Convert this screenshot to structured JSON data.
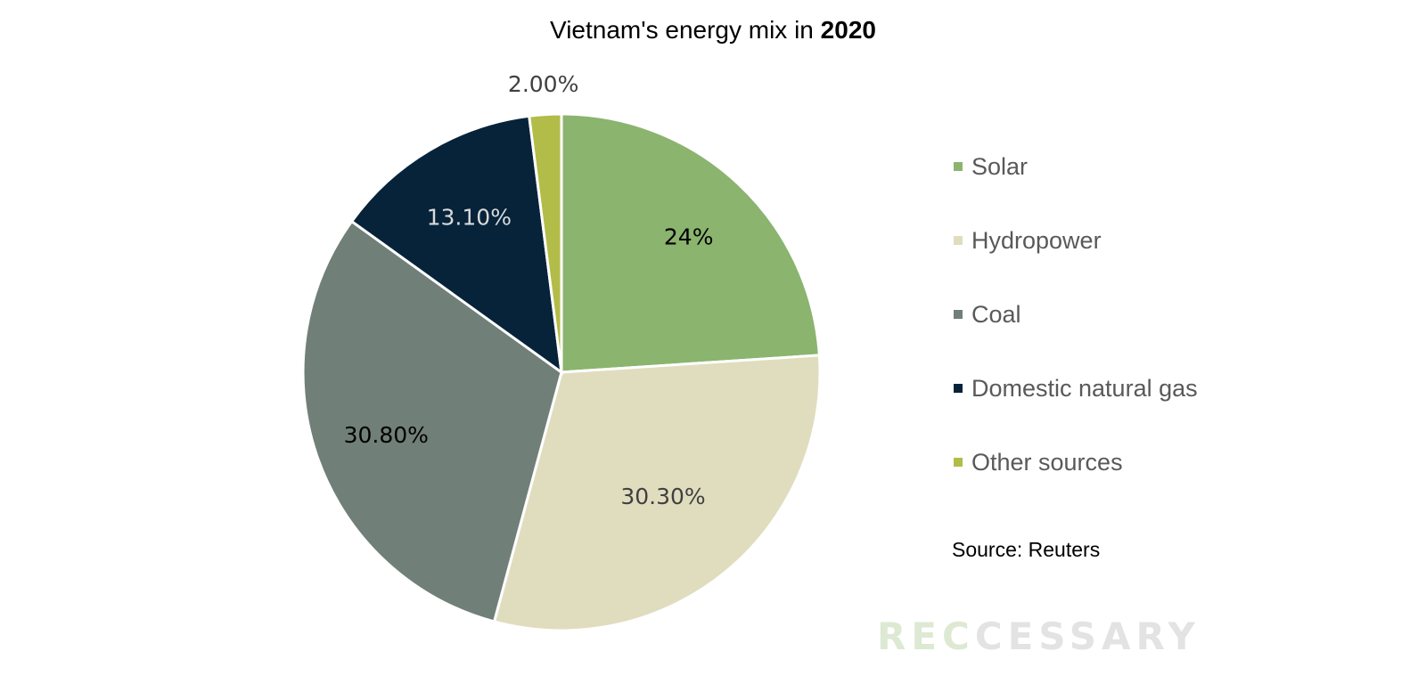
{
  "chart_data": {
    "type": "pie",
    "title": "Vietnam's energy mix in",
    "title_bold": "2020",
    "slices": [
      {
        "name": "Solar",
        "value": 24,
        "label": "24%",
        "color": "#8bb46f",
        "label_color": "#000000"
      },
      {
        "name": "Hydropower",
        "value": 30.3,
        "label": "30.30%",
        "color": "#e0ddbf",
        "label_color": "#404040"
      },
      {
        "name": "Coal",
        "value": 30.8,
        "label": "30.80%",
        "color": "#717f79",
        "label_color": "#000000"
      },
      {
        "name": "Domestic natural gas",
        "value": 13.1,
        "label": "13.10%",
        "color": "#06233a",
        "label_color": "#d9d9d9"
      },
      {
        "name": "Other sources",
        "value": 2.0,
        "label": "2.00%",
        "color": "#b2bc49",
        "label_color": "#404040"
      }
    ],
    "legend_position": "right"
  },
  "source_note": "Source: Reuters",
  "watermark": {
    "part_a": "REC",
    "part_b": "CESSARY"
  }
}
